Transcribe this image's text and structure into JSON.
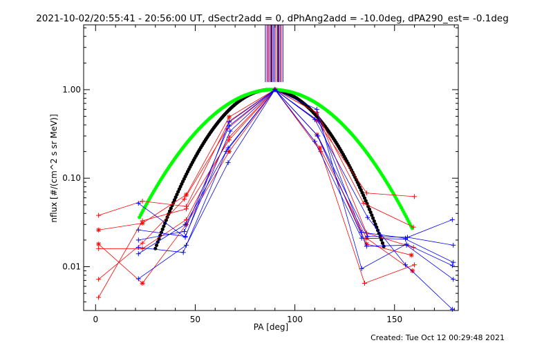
{
  "page": {
    "title": "2021-10-02/20:55:41 - 20:56:00 UT, dSectr2add = 0, dPhAng2add = -10.0deg, dPA290_est= -0.1deg",
    "footer": "Created: Tue Oct 12 00:29:48 2021"
  },
  "chart_data": {
    "type": "scatter",
    "title": "2021-10-02/20:55:41 - 20:56:00 UT, dSectr2add = 0, dPhAng2add = -10.0deg, dPA290_est= -0.1deg",
    "xlabel": "PA [deg]",
    "ylabel": "nflux [#/(cm^2 s sr MeV)]",
    "xlim": [
      -6,
      182
    ],
    "ylim": [
      0.0032,
      5.4
    ],
    "yscale": "log",
    "grid": false,
    "xticks": [
      0,
      50,
      100,
      150
    ],
    "xtick_labels": [
      "0",
      "50",
      "100",
      "150"
    ],
    "yticks": [
      0.01,
      0.1,
      1.0
    ],
    "ytick_labels": [
      "0.01",
      "0.10",
      "1.00"
    ],
    "colors": {
      "red": "#ff0000",
      "blue": "#0000ff",
      "black": "#000000",
      "green": "#00ff00"
    },
    "vlines": {
      "y_from": 1.22,
      "y_to": 5.4,
      "red": [
        86.0,
        87.2,
        88.5,
        90.5,
        92.0,
        93.2
      ],
      "blue": [
        85.2,
        86.6,
        87.9,
        89.1,
        89.8,
        91.3,
        92.6,
        94.0
      ],
      "dark": [
        88.2,
        91.7
      ]
    },
    "series": [
      {
        "color": "red",
        "marker": "+",
        "x": [
          1.5,
          23.5,
          45.5,
          67.0,
          90.0,
          111.0,
          136.0,
          160.0
        ],
        "y": [
          0.038,
          0.055,
          0.048,
          0.44,
          1.0,
          0.45,
          0.068,
          0.062
        ]
      },
      {
        "color": "red",
        "marker": "*",
        "x": [
          1.5,
          23.5,
          45.5,
          67.0,
          90.0,
          112.5,
          136.0,
          159.0
        ],
        "y": [
          0.026,
          0.031,
          0.065,
          0.49,
          1.0,
          0.22,
          0.021,
          0.009
        ]
      },
      {
        "color": "red",
        "marker": "+",
        "x": [
          1.5,
          23.5,
          45.5,
          67.0,
          90.0,
          111.0,
          134.5,
          159.5
        ],
        "y": [
          0.016,
          0.016,
          0.034,
          0.29,
          1.0,
          0.55,
          0.052,
          0.028
        ]
      },
      {
        "color": "red",
        "marker": "*",
        "x": [
          1.5,
          23.5,
          45.5,
          67.0,
          90.0,
          111.0,
          136.0,
          158.5
        ],
        "y": [
          0.018,
          0.0065,
          0.03,
          0.2,
          1.0,
          0.31,
          0.018,
          0.0135
        ]
      },
      {
        "color": "red",
        "marker": "+",
        "x": [
          1.5,
          23.5,
          45.5,
          67.0,
          90.0,
          113.0,
          135.0,
          160.0
        ],
        "y": [
          0.0045,
          0.033,
          0.045,
          0.27,
          1.0,
          0.2,
          0.0065,
          0.0105
        ]
      },
      {
        "color": "red",
        "marker": "+",
        "x": [
          1.5,
          23.5,
          44.5,
          66.0,
          90.0,
          111.0,
          136.0,
          159.5
        ],
        "y": [
          0.0072,
          0.0185,
          0.058,
          0.36,
          1.0,
          0.55,
          0.024,
          0.0165
        ]
      },
      {
        "color": "blue",
        "marker": "+",
        "x": [
          21.5,
          45.0,
          67.0,
          90.0,
          112.0,
          133.5,
          155.5,
          179.0
        ],
        "y": [
          0.052,
          0.0215,
          0.43,
          1.0,
          0.44,
          0.0245,
          0.021,
          0.034
        ]
      },
      {
        "color": "blue",
        "marker": "+",
        "x": [
          21.5,
          45.0,
          67.5,
          90.0,
          111.5,
          136.5,
          156.5,
          179.5
        ],
        "y": [
          0.026,
          0.022,
          0.34,
          1.0,
          0.3,
          0.022,
          0.0215,
          0.0175
        ]
      },
      {
        "color": "blue",
        "marker": "+",
        "x": [
          21.5,
          44.0,
          65.5,
          90.0,
          110.0,
          133.5,
          155.5,
          179.5
        ],
        "y": [
          0.0165,
          0.0145,
          0.2,
          1.0,
          0.26,
          0.021,
          0.0205,
          0.0112
        ]
      },
      {
        "color": "blue",
        "marker": "+",
        "x": [
          21.5,
          45.0,
          66.5,
          90.0,
          111.0,
          133.5,
          156.0,
          179.0
        ],
        "y": [
          0.014,
          0.03,
          0.22,
          1.0,
          0.6,
          0.0095,
          0.018,
          0.0103
        ]
      },
      {
        "color": "blue",
        "marker": "+",
        "x": [
          21.5,
          45.5,
          66.5,
          90.0,
          111.5,
          136.0,
          156.0,
          179.5
        ],
        "y": [
          0.0073,
          0.0175,
          0.15,
          1.0,
          0.3,
          0.017,
          0.0175,
          0.0072
        ]
      },
      {
        "color": "blue",
        "marker": "+",
        "x": [
          21.5,
          44.5,
          67.0,
          90.0,
          110.0,
          136.5,
          155.5,
          179.0
        ],
        "y": [
          0.02,
          0.025,
          0.39,
          1.0,
          0.46,
          0.036,
          0.0105,
          0.0033
        ]
      }
    ],
    "curves": [
      {
        "color": "black",
        "marker": "dot",
        "x_range": [
          30,
          145
        ],
        "center": 87.5,
        "sigma": 20.0,
        "peak": 1.0
      },
      {
        "color": "green",
        "marker": "dot",
        "x_range": [
          22,
          159
        ],
        "center": 89,
        "sigma": 26.0,
        "peak": 1.0
      }
    ]
  }
}
